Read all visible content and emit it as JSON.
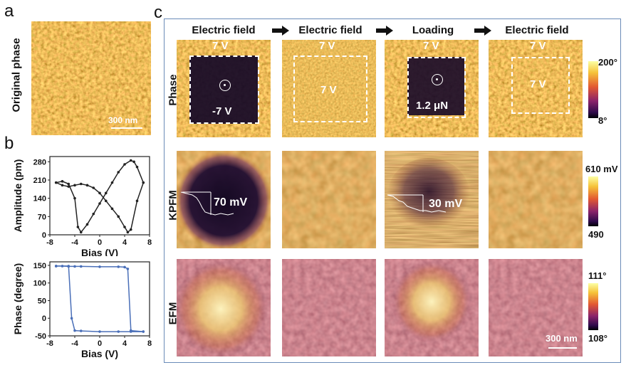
{
  "panel_a": {
    "letter": "a",
    "side_label": "Original phase",
    "scale_bar": "300 nm"
  },
  "panel_b": {
    "letter": "b",
    "top_plot": {
      "ylabel": "Amplitude (pm)",
      "xlabel": "Bias (V)",
      "yticks": [
        "280",
        "210",
        "140",
        "70",
        "0"
      ],
      "xticks": [
        "-8",
        "-4",
        "0",
        "4",
        "8"
      ],
      "xlim": [
        -8,
        8
      ],
      "ylim": [
        0,
        300
      ]
    },
    "bottom_plot": {
      "ylabel": "Phase (degree)",
      "xlabel": "Bias (V)",
      "yticks": [
        "150",
        "100",
        "50",
        "0",
        "-50"
      ],
      "xticks": [
        "-8",
        "-4",
        "0",
        "4",
        "8"
      ],
      "xlim": [
        -8,
        8
      ],
      "ylim": [
        -50,
        160
      ]
    }
  },
  "panel_c": {
    "letter": "c",
    "column_headers": [
      "Electric field",
      "Electric field",
      "Loading",
      "Electric field"
    ],
    "row_labels": [
      "Phase",
      "KPFM",
      "EFM"
    ],
    "phase_overlays": {
      "col1_top": "7 V",
      "col1_center": "-7 V",
      "col2_top": "7 V",
      "col2_center": "7 V",
      "col3_top": "7 V",
      "col3_center": "1.2 μN",
      "col4_top": "7 V",
      "col4_center": "7 V"
    },
    "kpfm_overlays": {
      "col1": "70 mV",
      "col3": "30 mV"
    },
    "colorbars": {
      "phase": {
        "max": "200°",
        "min": "8°"
      },
      "kpfm": {
        "max": "610 mV",
        "min": "490"
      },
      "efm": {
        "max": "111°",
        "min": "108°"
      }
    },
    "scale_bar": "300 nm"
  },
  "colors": {
    "afm_gold": "#c8922a",
    "afm_dark": "#1a0a2a",
    "loop_black": "#222222",
    "loop_blue": "#4a6fb8",
    "frame_blue": "#6a8bb8"
  },
  "chart_data": [
    {
      "type": "line",
      "title": "",
      "xlabel": "Bias (V)",
      "ylabel": "Amplitude (pm)",
      "xlim": [
        -8,
        8
      ],
      "ylim": [
        0,
        300
      ],
      "series": [
        {
          "x": [
            -7,
            -6,
            -5,
            -4,
            -3.5,
            -3,
            -2,
            -1,
            0,
            1,
            2,
            3,
            4,
            5,
            5.5,
            6,
            7
          ],
          "values": [
            200,
            205,
            195,
            140,
            30,
            10,
            40,
            80,
            120,
            160,
            200,
            240,
            270,
            285,
            280,
            260,
            200
          ]
        },
        {
          "x": [
            7,
            6,
            5,
            4.5,
            4,
            3,
            2,
            1,
            0,
            -1,
            -2,
            -3,
            -4,
            -5,
            -6,
            -7
          ],
          "values": [
            200,
            130,
            20,
            10,
            30,
            70,
            100,
            130,
            160,
            180,
            190,
            195,
            190,
            185,
            190,
            200
          ]
        }
      ]
    },
    {
      "type": "line",
      "title": "",
      "xlabel": "Bias (V)",
      "ylabel": "Phase (degree)",
      "xlim": [
        -8,
        8
      ],
      "ylim": [
        -50,
        160
      ],
      "series": [
        {
          "x": [
            -7,
            -6,
            -5,
            -4,
            -3,
            0,
            3,
            4,
            4.5,
            5,
            7
          ],
          "values": [
            148,
            148,
            147,
            147,
            147,
            146,
            146,
            145,
            140,
            -35,
            -38
          ]
        },
        {
          "x": [
            7,
            5,
            3,
            0,
            -3,
            -4,
            -4.5,
            -5,
            -7
          ],
          "values": [
            -38,
            -38,
            -38,
            -38,
            -36,
            -35,
            0,
            148,
            148
          ]
        }
      ]
    }
  ]
}
